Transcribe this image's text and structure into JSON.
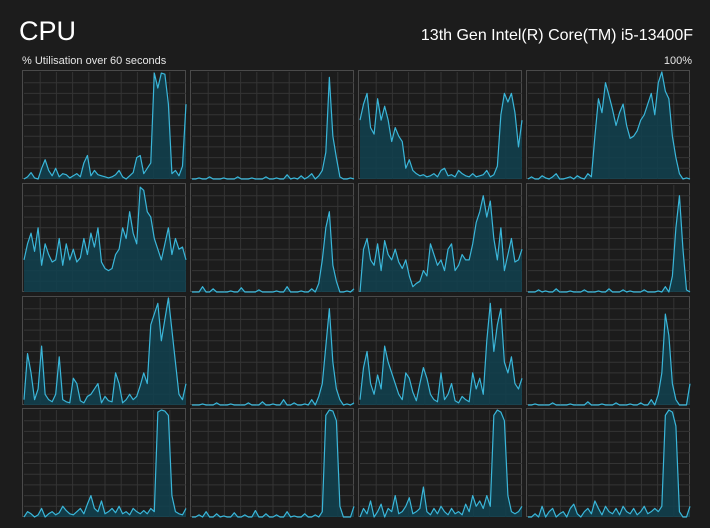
{
  "header": {
    "title": "CPU",
    "processor": "13th Gen Intel(R) Core(TM) i5-13400F",
    "util_label": "% Utilisation over 60 seconds",
    "max_label": "100%"
  },
  "colors": {
    "line": "#3ab6d9",
    "fill": "#10414f",
    "grid": "#343434",
    "border": "#4a4a4a",
    "background": "#1c1c1c"
  },
  "chart_data": {
    "type": "area",
    "ylim": [
      0,
      100
    ],
    "xlim_seconds": [
      60,
      0
    ],
    "grid": true,
    "cores": [
      {
        "values": [
          0,
          2,
          6,
          1,
          0,
          10,
          18,
          8,
          3,
          10,
          2,
          5,
          4,
          1,
          3,
          5,
          2,
          15,
          22,
          3,
          8,
          4,
          3,
          2,
          1,
          2,
          4,
          8,
          2,
          0,
          3,
          6,
          20,
          22,
          5,
          10,
          15,
          99,
          85,
          99,
          98,
          70,
          5,
          8,
          3,
          12,
          70
        ]
      },
      {
        "values": [
          0,
          0,
          1,
          0,
          0,
          2,
          0,
          0,
          0,
          1,
          0,
          0,
          0,
          2,
          0,
          0,
          0,
          1,
          0,
          0,
          0,
          2,
          0,
          0,
          1,
          0,
          0,
          4,
          0,
          1,
          0,
          3,
          0,
          2,
          5,
          0,
          3,
          8,
          25,
          95,
          40,
          20,
          2,
          0,
          0,
          1,
          0
        ]
      },
      {
        "values": [
          55,
          70,
          80,
          48,
          42,
          75,
          55,
          68,
          55,
          35,
          48,
          40,
          35,
          10,
          18,
          8,
          5,
          3,
          4,
          2,
          3,
          5,
          2,
          8,
          10,
          3,
          4,
          2,
          8,
          5,
          3,
          2,
          5,
          2,
          3,
          4,
          8,
          2,
          4,
          12,
          60,
          80,
          72,
          80,
          62,
          30,
          55
        ]
      },
      {
        "values": [
          0,
          2,
          0,
          0,
          3,
          1,
          0,
          2,
          5,
          0,
          0,
          1,
          2,
          0,
          3,
          1,
          0,
          5,
          2,
          40,
          75,
          62,
          90,
          78,
          65,
          50,
          62,
          70,
          50,
          38,
          40,
          45,
          55,
          60,
          70,
          80,
          60,
          90,
          100,
          82,
          75,
          40,
          20,
          5,
          0,
          1,
          0
        ]
      },
      {
        "values": [
          30,
          45,
          55,
          38,
          60,
          25,
          45,
          35,
          28,
          30,
          50,
          25,
          45,
          30,
          40,
          28,
          32,
          50,
          35,
          55,
          42,
          60,
          28,
          22,
          20,
          22,
          35,
          40,
          60,
          50,
          75,
          55,
          45,
          98,
          95,
          75,
          70,
          50,
          40,
          30,
          45,
          60,
          35,
          50,
          40,
          42,
          30
        ]
      },
      {
        "values": [
          0,
          0,
          0,
          5,
          0,
          0,
          3,
          0,
          0,
          0,
          0,
          1,
          0,
          0,
          4,
          0,
          0,
          0,
          0,
          2,
          0,
          0,
          0,
          0,
          1,
          0,
          0,
          5,
          0,
          0,
          0,
          1,
          0,
          0,
          3,
          0,
          8,
          30,
          60,
          75,
          25,
          10,
          0,
          0,
          1,
          0,
          3
        ]
      },
      {
        "values": [
          0,
          40,
          50,
          30,
          25,
          45,
          20,
          48,
          35,
          30,
          40,
          28,
          22,
          30,
          15,
          5,
          8,
          10,
          20,
          15,
          45,
          35,
          25,
          30,
          20,
          40,
          45,
          20,
          25,
          35,
          30,
          30,
          45,
          65,
          75,
          90,
          70,
          85,
          50,
          30,
          60,
          20,
          35,
          50,
          28,
          30,
          40
        ]
      },
      {
        "values": [
          0,
          0,
          0,
          2,
          0,
          1,
          0,
          0,
          3,
          0,
          0,
          0,
          1,
          0,
          0,
          0,
          2,
          0,
          0,
          0,
          1,
          0,
          0,
          3,
          0,
          0,
          0,
          2,
          0,
          1,
          0,
          0,
          0,
          2,
          0,
          0,
          0,
          1,
          0,
          5,
          0,
          15,
          60,
          90,
          40,
          2,
          0
        ]
      },
      {
        "values": [
          5,
          48,
          30,
          5,
          15,
          55,
          10,
          5,
          3,
          10,
          45,
          5,
          3,
          2,
          25,
          20,
          4,
          2,
          8,
          10,
          15,
          20,
          2,
          8,
          4,
          3,
          30,
          20,
          2,
          5,
          10,
          5,
          8,
          18,
          30,
          20,
          75,
          85,
          95,
          60,
          80,
          100,
          70,
          40,
          10,
          5,
          20
        ]
      },
      {
        "values": [
          0,
          0,
          0,
          1,
          0,
          0,
          0,
          2,
          0,
          0,
          0,
          1,
          0,
          0,
          0,
          0,
          2,
          0,
          0,
          0,
          3,
          0,
          0,
          1,
          0,
          0,
          5,
          0,
          0,
          2,
          0,
          0,
          1,
          0,
          5,
          0,
          8,
          20,
          55,
          90,
          40,
          15,
          5,
          0,
          1,
          0,
          2
        ]
      },
      {
        "values": [
          5,
          35,
          50,
          20,
          10,
          28,
          15,
          55,
          40,
          30,
          20,
          10,
          5,
          30,
          25,
          12,
          4,
          20,
          35,
          25,
          10,
          5,
          3,
          30,
          5,
          10,
          20,
          4,
          2,
          8,
          5,
          3,
          30,
          15,
          25,
          10,
          60,
          95,
          50,
          75,
          90,
          40,
          30,
          45,
          20,
          15,
          25
        ]
      },
      {
        "values": [
          0,
          0,
          1,
          0,
          0,
          0,
          0,
          2,
          0,
          0,
          0,
          0,
          1,
          0,
          0,
          0,
          0,
          3,
          0,
          0,
          0,
          1,
          0,
          0,
          0,
          2,
          0,
          0,
          0,
          1,
          0,
          0,
          2,
          0,
          0,
          5,
          0,
          10,
          30,
          85,
          65,
          20,
          5,
          0,
          0,
          0,
          20
        ]
      },
      {
        "values": [
          0,
          5,
          3,
          0,
          2,
          8,
          0,
          3,
          5,
          2,
          4,
          10,
          6,
          3,
          2,
          5,
          8,
          3,
          12,
          20,
          8,
          5,
          15,
          3,
          5,
          8,
          4,
          10,
          3,
          5,
          2,
          8,
          5,
          3,
          6,
          3,
          8,
          5,
          98,
          100,
          99,
          95,
          20,
          5,
          3,
          2,
          8
        ]
      },
      {
        "values": [
          0,
          0,
          2,
          0,
          5,
          0,
          0,
          3,
          0,
          1,
          0,
          0,
          4,
          0,
          0,
          2,
          0,
          0,
          6,
          0,
          0,
          3,
          0,
          0,
          2,
          0,
          0,
          5,
          0,
          1,
          0,
          0,
          3,
          0,
          0,
          2,
          0,
          5,
          95,
          100,
          99,
          90,
          10,
          0,
          0,
          0,
          10
        ]
      },
      {
        "values": [
          0,
          8,
          3,
          15,
          0,
          5,
          12,
          0,
          8,
          5,
          20,
          3,
          5,
          10,
          18,
          3,
          5,
          8,
          28,
          5,
          2,
          8,
          3,
          10,
          5,
          2,
          8,
          3,
          5,
          2,
          12,
          5,
          20,
          10,
          15,
          8,
          20,
          10,
          95,
          100,
          98,
          90,
          20,
          5,
          3,
          5,
          10
        ]
      },
      {
        "values": [
          0,
          0,
          3,
          0,
          10,
          0,
          5,
          8,
          0,
          3,
          5,
          0,
          8,
          12,
          3,
          0,
          5,
          8,
          3,
          15,
          8,
          2,
          10,
          5,
          3,
          8,
          2,
          10,
          5,
          3,
          8,
          2,
          5,
          10,
          3,
          5,
          8,
          5,
          10,
          95,
          100,
          98,
          85,
          5,
          0,
          0,
          10
        ]
      }
    ]
  }
}
